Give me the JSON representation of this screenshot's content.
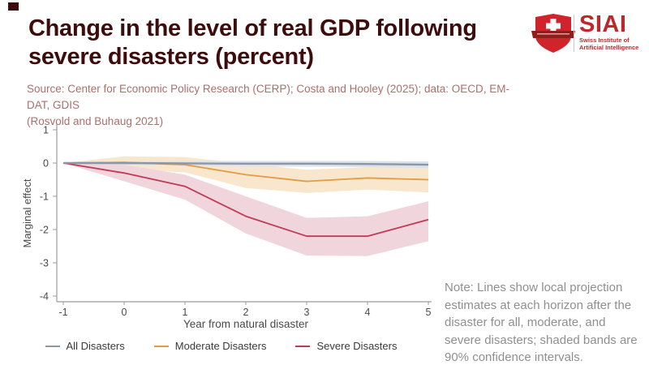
{
  "header": {
    "deco_square_color": "#3d0c0c",
    "title_line1": "Change in the level of real GDP following",
    "title_line2": "severe disasters (percent)",
    "title_color": "#3d0c0c",
    "source_line1": "Source: Center for Economic Policy Research (CERP); Costa and Hooley (2025); data: OECD, EM-DAT, GDIS",
    "source_line2": "(Rosvold and Buhaug 2021)",
    "source_color": "#a9706c"
  },
  "logo": {
    "brand": "SIAI",
    "subtitle_line1": "Swiss Institute of",
    "subtitle_line2": "Artificial Intelligence",
    "red": "#c0272d",
    "shield_red": "#d0242c",
    "banner_dark_red": "#8f1d1a"
  },
  "note": {
    "text": "Note: Lines show local projection estimates at each horizon after the disaster for all, moderate, and severe disasters; shaded bands are 90% confidence intervals.",
    "color": "#8f8f8f"
  },
  "chart_data": {
    "type": "line",
    "x": [
      -1,
      0,
      1,
      2,
      3,
      4,
      5
    ],
    "xticks": [
      -1,
      0,
      1,
      2,
      3,
      4,
      5
    ],
    "yticks": [
      1,
      0,
      -1,
      -2,
      -3,
      -4
    ],
    "ylim": [
      -4.2,
      1.1
    ],
    "xlabel": "Year from natural disaster",
    "ylabel": "Marginal effect",
    "grid": false,
    "legend_position": "bottom",
    "band_meaning": "90% confidence intervals",
    "series": [
      {
        "name": "All Disasters",
        "color": "#8b96a8",
        "band_color": "#dde1e8",
        "values": [
          0,
          0,
          -0.01,
          -0.02,
          -0.02,
          -0.03,
          -0.05
        ],
        "band_upper": [
          0,
          0.05,
          0.06,
          0.06,
          0.06,
          0.06,
          0.05
        ],
        "band_lower": [
          0,
          -0.05,
          -0.08,
          -0.1,
          -0.11,
          -0.12,
          -0.15
        ]
      },
      {
        "name": "Moderate Disasters",
        "color": "#e19c45",
        "band_color": "#f8e7cd",
        "values": [
          0,
          0.02,
          -0.05,
          -0.35,
          -0.55,
          -0.45,
          -0.5
        ],
        "band_upper": [
          0,
          0.2,
          0.18,
          -0.02,
          -0.2,
          -0.12,
          -0.12
        ],
        "band_lower": [
          0,
          -0.18,
          -0.28,
          -0.75,
          -0.9,
          -0.8,
          -0.88
        ]
      },
      {
        "name": "Severe Disasters",
        "color": "#c23a55",
        "band_color": "#f0d5dc",
        "values": [
          0,
          -0.3,
          -0.7,
          -1.6,
          -2.2,
          -2.2,
          -1.7
        ],
        "band_upper": [
          0,
          -0.05,
          -0.35,
          -1.0,
          -1.65,
          -1.6,
          -1.15
        ],
        "band_lower": [
          0,
          -0.55,
          -1.1,
          -2.12,
          -2.78,
          -2.8,
          -2.35
        ]
      }
    ]
  }
}
